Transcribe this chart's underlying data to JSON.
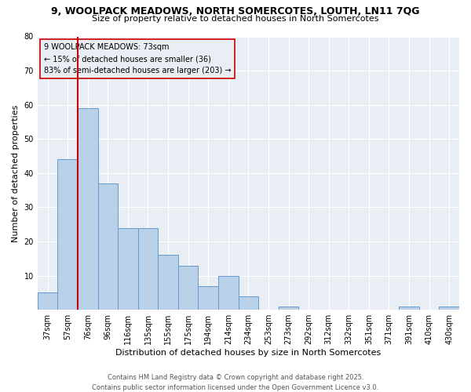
{
  "title1": "9, WOOLPACK MEADOWS, NORTH SOMERCOTES, LOUTH, LN11 7QG",
  "title2": "Size of property relative to detached houses in North Somercotes",
  "categories": [
    "37sqm",
    "57sqm",
    "76sqm",
    "96sqm",
    "116sqm",
    "135sqm",
    "155sqm",
    "175sqm",
    "194sqm",
    "214sqm",
    "234sqm",
    "253sqm",
    "273sqm",
    "292sqm",
    "312sqm",
    "332sqm",
    "351sqm",
    "371sqm",
    "391sqm",
    "410sqm",
    "430sqm"
  ],
  "values": [
    5,
    44,
    59,
    37,
    24,
    24,
    16,
    13,
    7,
    10,
    4,
    0,
    1,
    0,
    0,
    0,
    0,
    0,
    1,
    0,
    1
  ],
  "bar_color": "#b8d0e8",
  "bar_edge_color": "#6699cc",
  "vline_color": "#cc0000",
  "vline_x_index": 1.5,
  "xlabel": "Distribution of detached houses by size in North Somercotes",
  "ylabel": "Number of detached properties",
  "ylim": [
    0,
    80
  ],
  "yticks": [
    0,
    10,
    20,
    30,
    40,
    50,
    60,
    70,
    80
  ],
  "annotation_title": "9 WOOLPACK MEADOWS: 73sqm",
  "annotation_line1": "← 15% of detached houses are smaller (36)",
  "annotation_line2": "83% of semi-detached houses are larger (203) →",
  "footer1": "Contains HM Land Registry data © Crown copyright and database right 2025.",
  "footer2": "Contains public sector information licensed under the Open Government Licence v3.0.",
  "fig_background": "#ffffff",
  "ax_background": "#e8eef4",
  "grid_color": "#ffffff",
  "title_fontsize": 9,
  "subtitle_fontsize": 8,
  "axis_label_fontsize": 8,
  "tick_fontsize": 7,
  "annotation_fontsize": 7,
  "footer_fontsize": 6
}
